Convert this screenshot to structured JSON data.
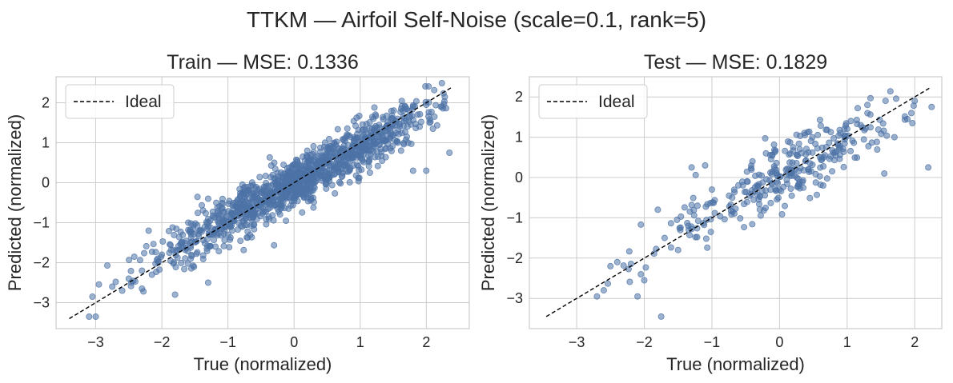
{
  "figure": {
    "title": "TTKM — Airfoil Self-Noise  (scale=0.1, rank=5)"
  },
  "chart_data": [
    {
      "type": "scatter",
      "title": "Train — MSE: 0.1336",
      "xlabel": "True (normalized)",
      "ylabel": "Predicted (normalized)",
      "xlim": [
        -3.6,
        2.65
      ],
      "ylim": [
        -3.65,
        2.65
      ],
      "xticks": [
        -3,
        -2,
        -1,
        0,
        1,
        2
      ],
      "yticks": [
        -3,
        -2,
        -1,
        0,
        1,
        2
      ],
      "xtick_labels": [
        "−3",
        "−2",
        "−1",
        "0",
        "1",
        "2"
      ],
      "ytick_labels": [
        "−3",
        "−2",
        "−1",
        "0",
        "1",
        "2"
      ],
      "grid": true,
      "legend": {
        "position": "top-left",
        "entries": [
          {
            "label": "Ideal",
            "style": "dashed",
            "color": "#000000"
          }
        ]
      },
      "ideal_line": {
        "x": [
          -3.4,
          2.38
        ],
        "y": [
          -3.4,
          2.38
        ]
      },
      "point_color": "#4c72a6",
      "n_points_approx": 1200,
      "points_note": "dense cloud along y=x with spread ~0.4",
      "sample_points": [
        {
          "x": -3.0,
          "y": -3.35
        },
        {
          "x": -3.1,
          "y": -3.35
        },
        {
          "x": -3.05,
          "y": -2.85
        },
        {
          "x": -2.75,
          "y": -2.6
        },
        {
          "x": -2.6,
          "y": -2.7
        },
        {
          "x": -2.5,
          "y": -2.4
        },
        {
          "x": -2.3,
          "y": -2.2
        },
        {
          "x": -2.3,
          "y": -2.65
        },
        {
          "x": -2.15,
          "y": -2.3
        },
        {
          "x": -2.0,
          "y": -1.8
        },
        {
          "x": -2.2,
          "y": -1.2
        },
        {
          "x": -1.8,
          "y": -2.8
        },
        {
          "x": -1.6,
          "y": -1.0
        },
        {
          "x": -1.3,
          "y": -0.4
        },
        {
          "x": -1.3,
          "y": -2.5
        },
        {
          "x": -1.0,
          "y": -1.3
        },
        {
          "x": -0.5,
          "y": -0.6
        },
        {
          "x": -0.3,
          "y": 0.5
        },
        {
          "x": 0.0,
          "y": -0.1
        },
        {
          "x": 0.2,
          "y": 0.8
        },
        {
          "x": 0.5,
          "y": 0.3
        },
        {
          "x": 0.8,
          "y": 1.2
        },
        {
          "x": 1.0,
          "y": 0.9
        },
        {
          "x": 1.2,
          "y": 1.6
        },
        {
          "x": 1.5,
          "y": 1.2
        },
        {
          "x": 1.65,
          "y": 1.8
        },
        {
          "x": 1.8,
          "y": 1.9
        },
        {
          "x": 1.8,
          "y": 0.3
        },
        {
          "x": 2.0,
          "y": 1.95
        },
        {
          "x": 2.0,
          "y": 0.3
        },
        {
          "x": 2.05,
          "y": 1.5
        },
        {
          "x": 2.1,
          "y": 1.35
        },
        {
          "x": 2.35,
          "y": 0.75
        }
      ]
    },
    {
      "type": "scatter",
      "title": "Test — MSE: 0.1829",
      "xlabel": "True (normalized)",
      "ylabel": "Predicted (normalized)",
      "xlim": [
        -3.7,
        2.4
      ],
      "ylim": [
        -3.75,
        2.5
      ],
      "xticks": [
        -3,
        -2,
        -1,
        0,
        1,
        2
      ],
      "yticks": [
        -3,
        -2,
        -1,
        0,
        1,
        2
      ],
      "xtick_labels": [
        "−3",
        "−2",
        "−1",
        "0",
        "1",
        "2"
      ],
      "ytick_labels": [
        "−3",
        "−2",
        "−1",
        "0",
        "1",
        "2"
      ],
      "grid": true,
      "legend": {
        "position": "top-left",
        "entries": [
          {
            "label": "Ideal",
            "style": "dashed",
            "color": "#000000"
          }
        ]
      },
      "ideal_line": {
        "x": [
          -3.45,
          2.22
        ],
        "y": [
          -3.45,
          2.22
        ]
      },
      "point_color": "#4c72a6",
      "n_points_approx": 300,
      "points_note": "cloud along y=x with spread ~0.45",
      "sample_points": [
        {
          "x": -2.7,
          "y": -2.95
        },
        {
          "x": -2.6,
          "y": -2.8
        },
        {
          "x": -2.5,
          "y": -2.2
        },
        {
          "x": -2.4,
          "y": -2.1
        },
        {
          "x": -2.1,
          "y": -2.95
        },
        {
          "x": -2.05,
          "y": -2.4
        },
        {
          "x": -2.0,
          "y": -2.55
        },
        {
          "x": -1.75,
          "y": -3.45
        },
        {
          "x": -1.8,
          "y": -0.8
        },
        {
          "x": -1.7,
          "y": -1.5
        },
        {
          "x": -1.5,
          "y": -1.8
        },
        {
          "x": -1.35,
          "y": -1.2
        },
        {
          "x": -1.3,
          "y": 0.25
        },
        {
          "x": -1.1,
          "y": 0.3
        },
        {
          "x": -1.0,
          "y": -0.3
        },
        {
          "x": -0.7,
          "y": -0.5
        },
        {
          "x": -0.4,
          "y": 0.4
        },
        {
          "x": -0.2,
          "y": 0.6
        },
        {
          "x": 0.0,
          "y": -0.3
        },
        {
          "x": 0.3,
          "y": 0.7
        },
        {
          "x": 0.6,
          "y": 0.5
        },
        {
          "x": 0.9,
          "y": 1.1
        },
        {
          "x": 1.2,
          "y": 1.3
        },
        {
          "x": 1.3,
          "y": 1.8
        },
        {
          "x": 1.55,
          "y": 0.1
        },
        {
          "x": 1.7,
          "y": 1.0
        },
        {
          "x": 1.95,
          "y": 1.6
        },
        {
          "x": 2.0,
          "y": 1.9
        },
        {
          "x": 2.2,
          "y": 0.25
        },
        {
          "x": 2.25,
          "y": 1.75
        }
      ]
    }
  ]
}
